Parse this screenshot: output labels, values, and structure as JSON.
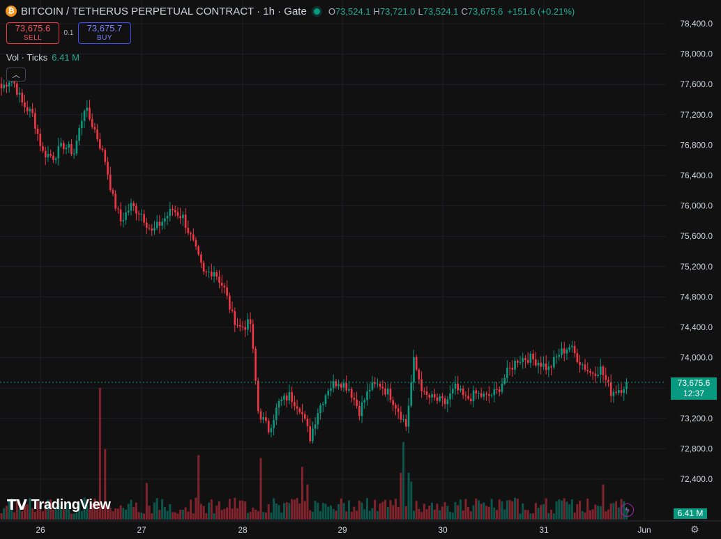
{
  "header": {
    "title": "BITCOIN / TETHERUS PERPETUAL CONTRACT · 1h · Gate",
    "coin_icon": "bitcoin-icon",
    "ohlc": {
      "o_label": "O",
      "o": "73,524.1",
      "h_label": "H",
      "h": "73,721.0",
      "l_label": "L",
      "l": "73,524.1",
      "c_label": "C",
      "c": "73,675.6",
      "change": "+151.6 (+0.21%)"
    }
  },
  "trade": {
    "sell_price": "73,675.6",
    "sell_label": "SELL",
    "spread": "0.1",
    "buy_price": "73,675.7",
    "buy_label": "BUY"
  },
  "volume_legend": {
    "label": "Vol · Ticks",
    "value": "6.41 M"
  },
  "badges": {
    "last_price": "73,675.6",
    "countdown": "12:37",
    "volume": "6.41 M"
  },
  "logo": {
    "text": "TradingView",
    "mark": "TV"
  },
  "colors": {
    "up": "#089981",
    "down": "#f23645",
    "background": "#111112",
    "grid": "#1f2024"
  },
  "chart_data": {
    "type": "candlestick",
    "y_axis": {
      "ticks": [
        78400,
        78000,
        77600,
        77200,
        76800,
        76400,
        76000,
        75600,
        75200,
        74800,
        74400,
        74000,
        73600,
        73200,
        72800,
        72400
      ],
      "tick_labels": [
        "78,400.0",
        "78,000.0",
        "77,600.0",
        "77,200.0",
        "76,800.0",
        "76,400.0",
        "76,000.0",
        "75,600.0",
        "75,200.0",
        "74,800.0",
        "74,400.0",
        "74,000.0",
        "73,600.0",
        "73,200.0",
        "72,800.0",
        "72,400.0"
      ],
      "range": [
        72200,
        78450
      ]
    },
    "x_axis": {
      "labels": [
        "26",
        "27",
        "28",
        "29",
        "30",
        "31",
        "Jun"
      ]
    },
    "last_price": 73675.6,
    "anchors": [
      {
        "i": 0,
        "p": 77550
      },
      {
        "i": 4,
        "p": 77700
      },
      {
        "i": 8,
        "p": 77350
      },
      {
        "i": 12,
        "p": 77200
      },
      {
        "i": 16,
        "p": 76700
      },
      {
        "i": 20,
        "p": 76650
      },
      {
        "i": 24,
        "p": 76800
      },
      {
        "i": 28,
        "p": 76700
      },
      {
        "i": 30,
        "p": 77000
      },
      {
        "i": 32,
        "p": 77300
      },
      {
        "i": 36,
        "p": 77000
      },
      {
        "i": 40,
        "p": 76600
      },
      {
        "i": 43,
        "p": 76100
      },
      {
        "i": 46,
        "p": 75800
      },
      {
        "i": 50,
        "p": 76000
      },
      {
        "i": 54,
        "p": 75900
      },
      {
        "i": 58,
        "p": 75650
      },
      {
        "i": 62,
        "p": 75800
      },
      {
        "i": 66,
        "p": 75950
      },
      {
        "i": 70,
        "p": 75850
      },
      {
        "i": 74,
        "p": 75500
      },
      {
        "i": 78,
        "p": 75100
      },
      {
        "i": 82,
        "p": 75150
      },
      {
        "i": 86,
        "p": 74900
      },
      {
        "i": 89,
        "p": 74550
      },
      {
        "i": 92,
        "p": 74400
      },
      {
        "i": 96,
        "p": 74450
      },
      {
        "i": 99,
        "p": 73300
      },
      {
        "i": 103,
        "p": 73050
      },
      {
        "i": 107,
        "p": 73400
      },
      {
        "i": 111,
        "p": 73500
      },
      {
        "i": 115,
        "p": 73350
      },
      {
        "i": 119,
        "p": 72950
      },
      {
        "i": 122,
        "p": 73300
      },
      {
        "i": 126,
        "p": 73600
      },
      {
        "i": 130,
        "p": 73700
      },
      {
        "i": 134,
        "p": 73600
      },
      {
        "i": 138,
        "p": 73300
      },
      {
        "i": 142,
        "p": 73600
      },
      {
        "i": 146,
        "p": 73650
      },
      {
        "i": 150,
        "p": 73500
      },
      {
        "i": 154,
        "p": 73250
      },
      {
        "i": 156,
        "p": 73100
      },
      {
        "i": 159,
        "p": 73950
      },
      {
        "i": 163,
        "p": 73500
      },
      {
        "i": 167,
        "p": 73450
      },
      {
        "i": 171,
        "p": 73400
      },
      {
        "i": 175,
        "p": 73600
      },
      {
        "i": 179,
        "p": 73450
      },
      {
        "i": 183,
        "p": 73520
      },
      {
        "i": 187,
        "p": 73480
      },
      {
        "i": 191,
        "p": 73550
      },
      {
        "i": 195,
        "p": 73800
      },
      {
        "i": 199,
        "p": 73980
      },
      {
        "i": 203,
        "p": 74000
      },
      {
        "i": 207,
        "p": 73950
      },
      {
        "i": 211,
        "p": 73850
      },
      {
        "i": 215,
        "p": 74050
      },
      {
        "i": 219,
        "p": 74150
      },
      {
        "i": 223,
        "p": 73950
      },
      {
        "i": 227,
        "p": 73800
      },
      {
        "i": 231,
        "p": 73850
      },
      {
        "i": 235,
        "p": 73550
      },
      {
        "i": 239,
        "p": 73600
      },
      {
        "i": 241,
        "p": 73675.6
      }
    ],
    "volume_spikes": [
      {
        "i": 38,
        "v": 9.0
      },
      {
        "i": 40,
        "v": 4.8
      },
      {
        "i": 56,
        "v": 2.5
      },
      {
        "i": 76,
        "v": 4.4
      },
      {
        "i": 100,
        "v": 4.2
      },
      {
        "i": 116,
        "v": 3.6
      },
      {
        "i": 118,
        "v": 2.4
      },
      {
        "i": 154,
        "v": 3.2
      },
      {
        "i": 155,
        "v": 5.3
      },
      {
        "i": 157,
        "v": 3.2
      },
      {
        "i": 158,
        "v": 2.6
      },
      {
        "i": 232,
        "v": 2.4
      }
    ]
  }
}
